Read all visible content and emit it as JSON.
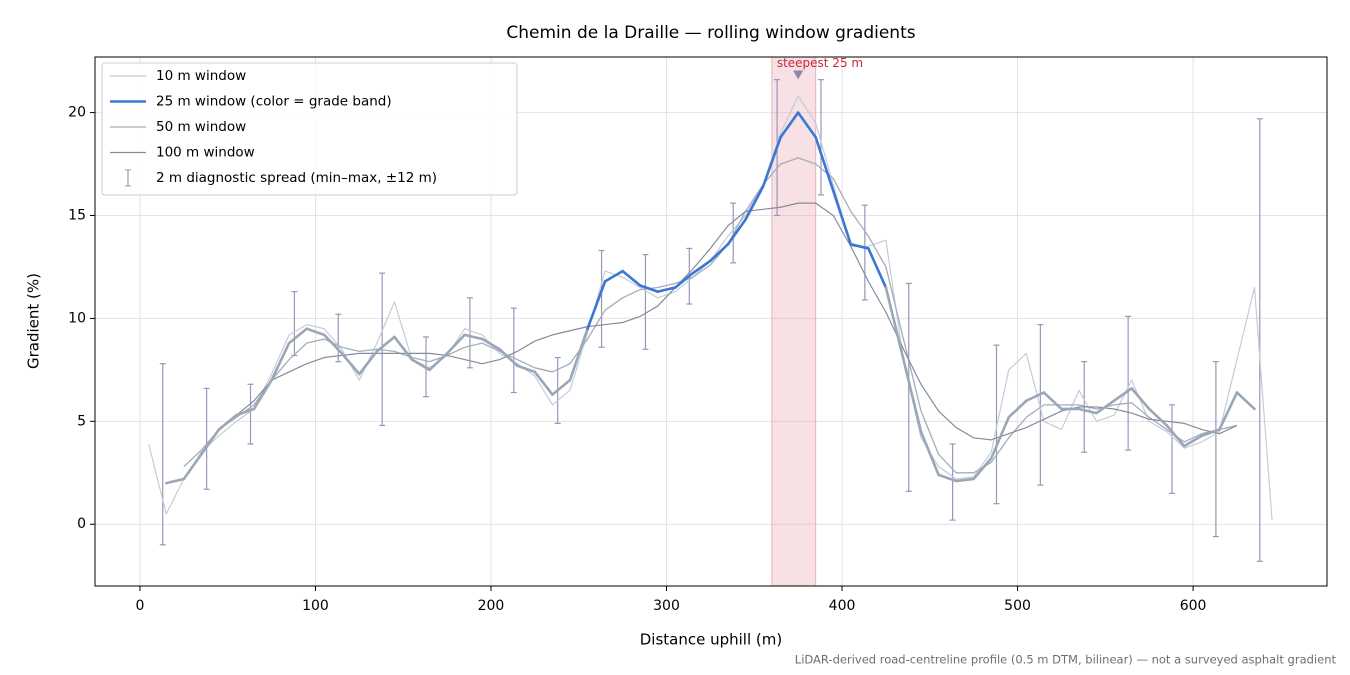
{
  "chart_data": {
    "type": "line",
    "title": "Chemin de la Draille — rolling window gradients",
    "xlabel": "Distance uphill (m)",
    "ylabel": "Gradient (%)",
    "footnote": "LiDAR-derived road-centreline profile (0.5 m DTM, bilinear) — not a surveyed asphalt gradient",
    "xlim": [
      -25.6,
      676.3
    ],
    "ylim": [
      -3,
      22.7
    ],
    "xticks": [
      0,
      100,
      200,
      300,
      400,
      500,
      600
    ],
    "yticks": [
      0,
      5,
      10,
      15,
      20
    ],
    "grid": true,
    "legend": "upper left",
    "x": [
      5,
      15,
      25,
      35,
      45,
      55,
      65,
      75,
      85,
      95,
      105,
      115,
      125,
      135,
      145,
      155,
      165,
      175,
      185,
      195,
      205,
      215,
      225,
      235,
      245,
      255,
      265,
      275,
      285,
      295,
      305,
      315,
      325,
      335,
      345,
      355,
      365,
      375,
      385,
      395,
      405,
      415,
      425,
      435,
      445,
      455,
      465,
      475,
      485,
      495,
      505,
      515,
      525,
      535,
      545,
      555,
      565,
      575,
      585,
      595,
      605,
      615,
      625,
      635,
      645
    ],
    "series": [
      {
        "name": "10 m window",
        "color": "#c6cbd6",
        "width": 1.2,
        "values": [
          3.9,
          0.5,
          2.2,
          3.5,
          4.3,
          5.0,
          5.6,
          7.3,
          9.2,
          9.7,
          9.5,
          8.5,
          7.0,
          8.8,
          10.8,
          8.0,
          7.6,
          8.2,
          9.5,
          9.2,
          8.3,
          7.8,
          7.2,
          5.8,
          6.5,
          9.3,
          12.3,
          12.0,
          11.5,
          11.0,
          11.3,
          12.0,
          12.8,
          14.0,
          15.0,
          16.5,
          19.0,
          20.8,
          19.5,
          16.5,
          13.5,
          13.5,
          13.8,
          8.0,
          4.2,
          2.8,
          2.2,
          2.3,
          3.5,
          7.5,
          8.3,
          5.0,
          4.6,
          6.5,
          5.0,
          5.3,
          7.0,
          5.0,
          4.5,
          3.7,
          4.0,
          4.5,
          8.0,
          11.5,
          0.2
        ]
      },
      {
        "name": "25 m window (color = grade band)",
        "color": "#9aa7b8",
        "band_color": "#3a78d4",
        "band_threshold": 10,
        "width": 2.6,
        "values": [
          null,
          2.0,
          2.2,
          3.4,
          4.6,
          5.3,
          5.6,
          7.0,
          8.8,
          9.5,
          9.2,
          8.3,
          7.3,
          8.4,
          9.1,
          8.0,
          7.5,
          8.3,
          9.2,
          9.0,
          8.5,
          7.7,
          7.4,
          6.3,
          7.0,
          9.5,
          11.8,
          12.3,
          11.6,
          11.3,
          11.5,
          12.2,
          12.8,
          13.6,
          14.8,
          16.4,
          18.8,
          20.0,
          18.8,
          16.2,
          13.6,
          13.4,
          11.5,
          8.0,
          4.5,
          2.4,
          2.1,
          2.2,
          3.2,
          5.2,
          6.0,
          6.4,
          5.6,
          5.6,
          5.4,
          6.0,
          6.6,
          5.6,
          4.8,
          3.8,
          4.3,
          4.6,
          6.4,
          5.6,
          null
        ]
      },
      {
        "name": "50 m window",
        "color": "#a3adbd",
        "width": 1.3,
        "values": [
          null,
          null,
          2.8,
          3.6,
          4.6,
          5.2,
          5.8,
          7.0,
          8.0,
          8.8,
          9.0,
          8.6,
          8.4,
          8.5,
          8.4,
          8.1,
          7.9,
          8.2,
          8.6,
          8.8,
          8.4,
          8.0,
          7.6,
          7.4,
          7.8,
          9.0,
          10.4,
          11.0,
          11.4,
          11.5,
          11.7,
          12.0,
          12.6,
          13.6,
          15.2,
          16.5,
          17.5,
          17.8,
          17.5,
          16.8,
          15.2,
          14.0,
          12.5,
          9.0,
          5.5,
          3.4,
          2.5,
          2.5,
          3.0,
          4.2,
          5.2,
          5.8,
          5.8,
          5.8,
          5.6,
          5.8,
          5.9,
          5.2,
          4.6,
          4.0,
          4.4,
          4.6,
          4.8,
          null,
          null
        ]
      },
      {
        "name": "100 m window",
        "color": "#858c9a",
        "width": 1.2,
        "values": [
          null,
          null,
          null,
          null,
          null,
          5.3,
          6.0,
          7.0,
          7.4,
          7.8,
          8.1,
          8.2,
          8.3,
          8.3,
          8.3,
          8.3,
          8.3,
          8.2,
          8.0,
          7.8,
          8.0,
          8.4,
          8.9,
          9.2,
          9.4,
          9.6,
          9.7,
          9.8,
          10.1,
          10.6,
          11.5,
          12.4,
          13.4,
          14.5,
          15.2,
          15.3,
          15.4,
          15.6,
          15.6,
          15.0,
          13.5,
          11.8,
          10.3,
          8.5,
          6.8,
          5.5,
          4.7,
          4.2,
          4.1,
          4.4,
          4.7,
          5.1,
          5.5,
          5.7,
          5.7,
          5.6,
          5.4,
          5.1,
          5.0,
          4.9,
          4.6,
          4.4,
          4.8,
          null,
          null
        ]
      }
    ],
    "spread": {
      "name": "2 m diagnostic spread (min–max, ±12 m)",
      "color": "#9c95ba",
      "x": [
        13,
        38,
        63,
        88,
        113,
        138,
        163,
        188,
        213,
        238,
        263,
        288,
        313,
        338,
        363,
        388,
        413,
        438,
        463,
        488,
        513,
        538,
        563,
        588,
        613,
        638
      ],
      "low": [
        -1.0,
        1.7,
        3.9,
        8.2,
        7.9,
        4.8,
        6.2,
        7.6,
        6.4,
        4.9,
        8.6,
        8.5,
        10.7,
        12.7,
        15.0,
        16.0,
        10.9,
        1.6,
        0.2,
        1.0,
        1.9,
        3.5,
        3.6,
        1.5,
        -0.6,
        -1.8
      ],
      "high": [
        7.8,
        6.6,
        6.8,
        11.3,
        10.2,
        12.2,
        9.1,
        11.0,
        10.5,
        8.1,
        13.3,
        13.1,
        13.4,
        15.6,
        21.6,
        21.6,
        15.5,
        11.7,
        3.9,
        8.7,
        9.7,
        7.9,
        10.1,
        5.8,
        7.9,
        19.7
      ]
    },
    "highlight": {
      "xrange": [
        360,
        385
      ],
      "color": "#e8a3ac",
      "label": "steepest 25 m",
      "label_color": "#c8283c",
      "marker": [
        375,
        21.8
      ],
      "marker_color": "#8f86aa"
    }
  }
}
